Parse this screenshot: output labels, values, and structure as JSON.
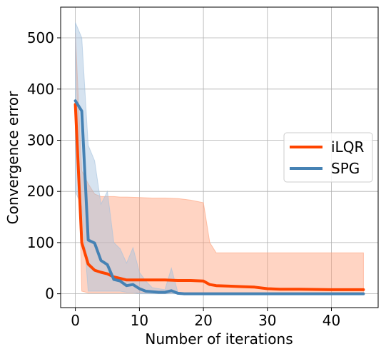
{
  "chart_data": {
    "type": "line",
    "xlabel": "Number of iterations",
    "ylabel": "Convergence error",
    "xlim": [
      -2.3,
      47.3
    ],
    "ylim": [
      -27,
      560
    ],
    "xticks": [
      0,
      10,
      20,
      30,
      40
    ],
    "yticks": [
      0,
      100,
      200,
      300,
      400,
      500
    ],
    "grid": true,
    "legend": "center-right",
    "series": [
      {
        "name": "iLQR",
        "color": "#ff4500",
        "band_color": "#ffa07a",
        "x": [
          0,
          1,
          2,
          3,
          4,
          5,
          6,
          7,
          8,
          10,
          12,
          14,
          16,
          18,
          20,
          21,
          22,
          24,
          26,
          28,
          30,
          32,
          35,
          40,
          45
        ],
        "mean": [
          370,
          100,
          58,
          46,
          42,
          39,
          33,
          30,
          27,
          27,
          27,
          27,
          26,
          26,
          25,
          18,
          16,
          15,
          14,
          13,
          10,
          9,
          9,
          8,
          8
        ],
        "lower": [
          510,
          5,
          2,
          2,
          2,
          2,
          2,
          2,
          2,
          2,
          2,
          2,
          2,
          2,
          2,
          2,
          2,
          2,
          2,
          2,
          2,
          2,
          2,
          2,
          2
        ],
        "upper": [
          510,
          240,
          215,
          195,
          190,
          190,
          190,
          189,
          189,
          188,
          187,
          187,
          186,
          183,
          178,
          100,
          80,
          80,
          80,
          80,
          80,
          80,
          80,
          80,
          80
        ]
      },
      {
        "name": "SPG",
        "color": "#4682b4",
        "band_color": "#a4c2dd",
        "x": [
          0,
          1,
          2,
          3,
          4,
          5,
          6,
          7,
          8,
          9,
          10,
          11,
          12,
          13,
          14,
          15,
          16,
          17,
          20,
          25,
          30,
          35,
          40,
          45
        ],
        "mean": [
          377,
          357,
          105,
          99,
          65,
          57,
          28,
          25,
          16,
          18,
          10,
          5,
          4,
          3,
          3,
          6,
          1,
          0,
          0,
          0,
          0,
          0,
          0,
          0
        ],
        "lower": [
          200,
          170,
          5,
          5,
          5,
          5,
          5,
          5,
          3,
          3,
          0,
          0,
          0,
          0,
          0,
          0,
          0,
          0,
          0,
          0,
          0,
          0,
          0,
          0
        ],
        "upper": [
          530,
          500,
          290,
          260,
          175,
          200,
          100,
          88,
          60,
          90,
          42,
          25,
          12,
          10,
          8,
          50,
          3,
          2,
          1,
          1,
          1,
          1,
          1,
          1
        ]
      }
    ]
  }
}
